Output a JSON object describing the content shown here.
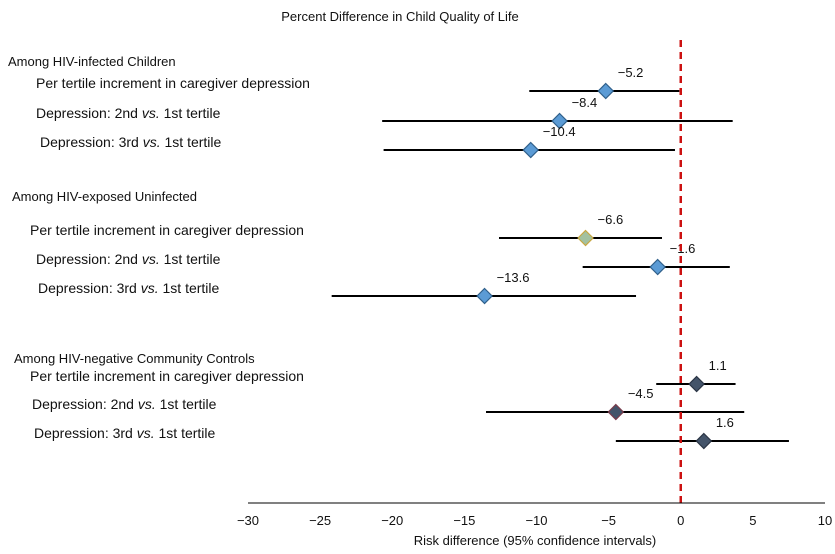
{
  "chart_data": {
    "type": "forest",
    "title": "Percent Difference in Child Quality of Life",
    "xlabel": "Risk difference (95% confidence intervals)",
    "xlim": [
      -30,
      10
    ],
    "xticks": [
      "−30",
      "−25",
      "−20",
      "−15",
      "−10",
      "−5",
      "0",
      "5",
      "10"
    ],
    "xtick_values": [
      -30,
      -25,
      -20,
      -15,
      -10,
      -5,
      0,
      5,
      10
    ],
    "reference_line": 0,
    "colors": {
      "reference_line": "#cc1111",
      "infected_marker": "#5b9bd5",
      "exposed_marker_fill": "#5b9bd5",
      "exposed_marker_first_fill": "#a3c1a0",
      "controls_marker": "#44546a"
    },
    "groups": [
      {
        "label": "Among HIV-infected Children",
        "rows": [
          {
            "label_pre": "Per tertile increment in caregiver depression",
            "label_ital": "",
            "label_post": "",
            "estimate": -5.2,
            "lower": -10.5,
            "upper": -0.1,
            "value_label": "−5.2"
          },
          {
            "label_pre": "Depression: 2nd ",
            "label_ital": "vs.",
            "label_post": " 1st tertile",
            "estimate": -8.4,
            "lower": -20.7,
            "upper": 3.6,
            "value_label": "−8.4"
          },
          {
            "label_pre": "Depression: 3rd ",
            "label_ital": "vs.",
            "label_post": " 1st tertile",
            "estimate": -10.4,
            "lower": -20.6,
            "upper": -0.4,
            "value_label": "−10.4"
          }
        ]
      },
      {
        "label": "Among HIV-exposed Uninfected",
        "rows": [
          {
            "label_pre": "Per tertile increment in caregiver depression",
            "label_ital": "",
            "label_post": "",
            "estimate": -6.6,
            "lower": -12.6,
            "upper": -1.3,
            "value_label": "−6.6"
          },
          {
            "label_pre": "Depression: 2nd ",
            "label_ital": "vs.",
            "label_post": " 1st tertile",
            "estimate": -1.6,
            "lower": -6.8,
            "upper": 3.4,
            "value_label": "−1.6"
          },
          {
            "label_pre": "Depression: 3rd ",
            "label_ital": "vs.",
            "label_post": " 1st tertile",
            "estimate": -13.6,
            "lower": -24.2,
            "upper": -3.1,
            "value_label": "−13.6"
          }
        ]
      },
      {
        "label": "Among HIV-negative Community Controls",
        "rows": [
          {
            "label_pre": "Per tertile increment in caregiver depression",
            "label_ital": "",
            "label_post": "",
            "estimate": 1.1,
            "lower": -1.7,
            "upper": 3.8,
            "value_label": "1.1"
          },
          {
            "label_pre": "Depression: 2nd ",
            "label_ital": "vs.",
            "label_post": " 1st tertile",
            "estimate": -4.5,
            "lower": -13.5,
            "upper": 4.4,
            "value_label": "−4.5"
          },
          {
            "label_pre": "Depression: 3rd ",
            "label_ital": "vs.",
            "label_post": " 1st tertile",
            "estimate": 1.6,
            "lower": -4.5,
            "upper": 7.5,
            "value_label": "1.6"
          }
        ]
      }
    ]
  }
}
